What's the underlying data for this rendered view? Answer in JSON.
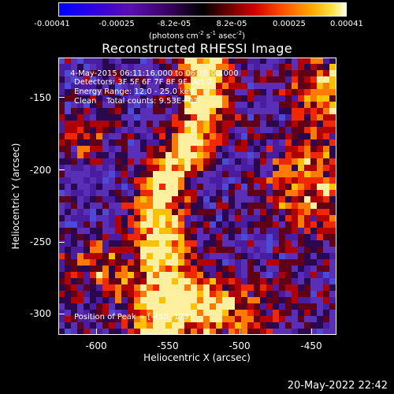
{
  "colorbar": {
    "tick_labels": [
      "-0.00041",
      "-0.00025",
      "-8.2e-05",
      "8.2e-05",
      "0.00025",
      "0.00041"
    ],
    "units_text": "(photons cm",
    "units_exp1": "-2",
    "units_mid1": " s",
    "units_exp2": "-1",
    "units_mid2": " asec",
    "units_exp3": "-2",
    "units_end": ")",
    "colors": [
      "#0000ff",
      "#5a00c8",
      "#3a0070",
      "#000000",
      "#5a0000",
      "#c00000",
      "#ff4000",
      "#ff9000",
      "#ffd800",
      "#ffffc0"
    ]
  },
  "title": "Reconstructed RHESSI Image",
  "annotations": {
    "time_range": " 4-May-2015 06:11:16.000 to 06:16:00.000",
    "detectors": "Detectors: 3F 5F 6F 7F 8F 9F, Att 0",
    "energy": "Energy Range: 12.0 - 25.0 keV",
    "clean": "Clean    Total counts: 9.53E+03",
    "peak": "Position of Peak = [-450,-179]"
  },
  "axes": {
    "y_ticks": [
      "-150",
      "-200",
      "-250",
      "-300"
    ],
    "x_ticks": [
      "-600",
      "-550",
      "-500",
      "-450"
    ],
    "xlabel": "Heliocentric X (arcsec)",
    "ylabel": "Heliocentric Y (arcsec)"
  },
  "timestamp": "20-May-2022 22:42"
}
